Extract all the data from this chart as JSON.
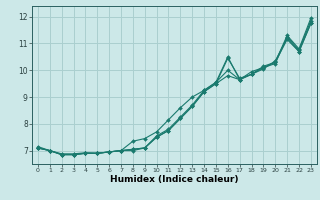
{
  "xlabel": "Humidex (Indice chaleur)",
  "ylabel": "",
  "bg_color": "#cce8e8",
  "grid_color": "#aacfcf",
  "line_color": "#1a7a6e",
  "xlim": [
    -0.5,
    23.5
  ],
  "ylim": [
    6.5,
    12.4
  ],
  "yticks": [
    7,
    8,
    9,
    10,
    11,
    12
  ],
  "xticks": [
    0,
    1,
    2,
    3,
    4,
    5,
    6,
    7,
    8,
    9,
    10,
    11,
    12,
    13,
    14,
    15,
    16,
    17,
    18,
    19,
    20,
    21,
    22,
    23
  ],
  "series": [
    {
      "x": [
        0,
        1,
        2,
        3,
        4,
        5,
        6,
        7,
        8,
        9,
        10,
        11,
        12,
        13,
        14,
        15,
        16,
        17,
        18,
        19,
        20,
        21,
        22,
        23
      ],
      "y": [
        7.1,
        7.0,
        6.85,
        6.85,
        6.9,
        6.9,
        6.95,
        7.0,
        7.05,
        7.1,
        7.55,
        7.8,
        8.25,
        8.7,
        9.25,
        9.55,
        10.5,
        9.65,
        9.85,
        10.15,
        10.3,
        11.3,
        10.8,
        11.95
      ]
    },
    {
      "x": [
        0,
        1,
        2,
        3,
        4,
        5,
        6,
        7,
        8,
        9,
        10,
        11,
        12,
        13,
        14,
        15,
        16,
        17,
        18,
        19,
        20,
        21,
        22,
        23
      ],
      "y": [
        7.1,
        7.0,
        6.85,
        6.85,
        6.9,
        6.9,
        6.95,
        7.0,
        7.0,
        7.1,
        7.5,
        7.75,
        8.2,
        8.65,
        9.2,
        9.5,
        10.45,
        9.7,
        9.85,
        10.1,
        10.25,
        11.25,
        10.75,
        11.85
      ]
    },
    {
      "x": [
        0,
        1,
        2,
        3,
        4,
        5,
        6,
        7,
        8,
        9,
        10,
        11,
        12,
        13,
        14,
        15,
        16,
        17,
        18,
        19,
        20,
        21,
        22,
        23
      ],
      "y": [
        7.1,
        7.0,
        6.88,
        6.88,
        6.92,
        6.9,
        6.95,
        7.0,
        7.05,
        7.1,
        7.5,
        7.75,
        8.2,
        8.65,
        9.2,
        9.5,
        9.8,
        9.65,
        9.85,
        10.05,
        10.35,
        11.2,
        10.7,
        11.75
      ]
    },
    {
      "x": [
        0,
        1,
        2,
        3,
        4,
        5,
        6,
        7,
        8,
        9,
        10,
        11,
        12,
        13,
        14,
        15,
        16,
        17,
        18,
        19,
        20,
        21,
        22,
        23
      ],
      "y": [
        7.15,
        7.0,
        6.85,
        6.85,
        6.9,
        6.9,
        6.95,
        7.0,
        7.35,
        7.45,
        7.7,
        8.15,
        8.6,
        9.0,
        9.25,
        9.55,
        10.0,
        9.65,
        9.95,
        10.1,
        10.3,
        11.15,
        10.7,
        11.75
      ]
    }
  ]
}
